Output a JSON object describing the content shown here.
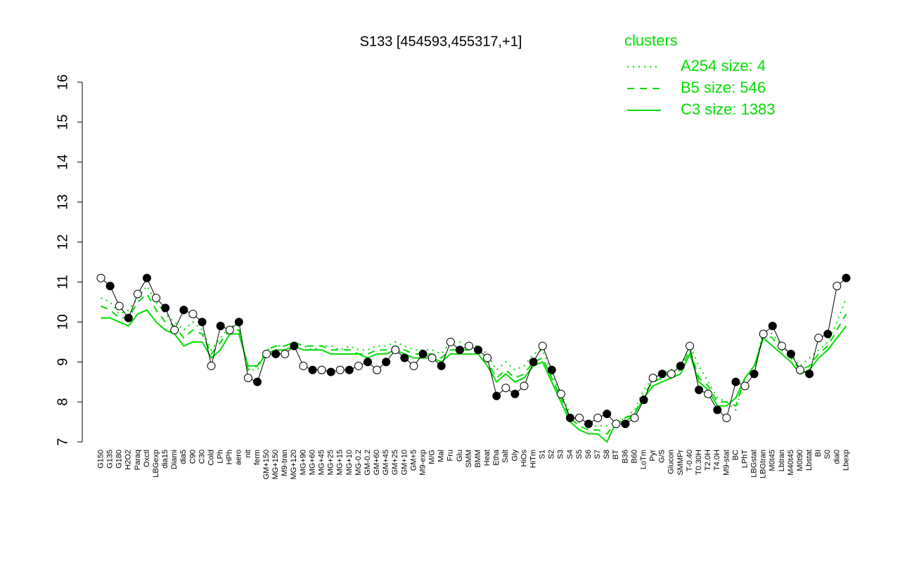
{
  "chart_data": {
    "type": "line",
    "title": "S133 [454593,455317,+1]",
    "categories": [
      "G150",
      "G135",
      "G180",
      "H2O2",
      "Paraq",
      "Oxctl",
      "LBGexp",
      "dia15",
      "Diami",
      "dia5",
      "C90",
      "C30",
      "Cold",
      "LPh",
      "HPh",
      "aero",
      "nit",
      "ferm",
      "GM+150",
      "MG+150",
      "M9-tran",
      "MG+120",
      "MG+90",
      "MG+60",
      "MG+45",
      "MG+25",
      "MG+15",
      "MG+10",
      "MG-0.2",
      "GM-0.2",
      "GM+60",
      "GM+45",
      "GM+25",
      "GM+10",
      "GM+5",
      "M9-exp",
      "M/G",
      "Mal",
      "Fru",
      "Glu",
      "SMM",
      "BMM",
      "Heat",
      "Etha",
      "Salt",
      "Gly",
      "HiOs",
      "HiTm",
      "S1",
      "S2",
      "S3",
      "S4",
      "S5",
      "S6",
      "S7",
      "S8",
      "BT",
      "B36",
      "B60",
      "LoTm",
      "Pyr",
      "G/S",
      "Glucon",
      "SMMPr",
      "T-0.40",
      "T0.30H",
      "T2.0H",
      "T4.0H",
      "M9-stat",
      "BC",
      "LPhT",
      "LBGstat",
      "LBGtran",
      "M0t45",
      "Lbtran",
      "M40t45",
      "M0t90",
      "Lbstat",
      "BI",
      "S0",
      "dia0",
      "Lbexp"
    ],
    "values": [
      11.1,
      10.9,
      10.4,
      10.1,
      10.7,
      11.1,
      10.6,
      10.35,
      9.8,
      10.3,
      10.2,
      10.0,
      8.9,
      9.9,
      9.8,
      10.0,
      8.6,
      8.5,
      9.2,
      9.2,
      9.2,
      9.4,
      8.9,
      8.8,
      8.8,
      8.75,
      8.8,
      8.8,
      8.9,
      9.0,
      8.8,
      9.0,
      9.3,
      9.1,
      8.9,
      9.2,
      9.1,
      8.9,
      9.5,
      9.3,
      9.4,
      9.3,
      9.1,
      8.15,
      8.35,
      8.2,
      8.4,
      9.0,
      9.4,
      8.8,
      8.2,
      7.6,
      7.6,
      7.45,
      7.6,
      7.7,
      7.45,
      7.45,
      7.6,
      8.05,
      8.6,
      8.7,
      8.7,
      8.9,
      9.4,
      8.3,
      8.2,
      7.8,
      7.6,
      8.5,
      8.4,
      8.7,
      9.7,
      9.9,
      9.4,
      9.2,
      8.8,
      8.7,
      9.6,
      9.7,
      10.9,
      11.1
    ],
    "color": "#000000",
    "legend_title": "clusters",
    "legend_color": "#00dd00",
    "series": [
      {
        "name": "A254 size: 4",
        "color": "#00dd00",
        "dash": "dotted",
        "values": [
          10.6,
          10.5,
          10.2,
          10.3,
          10.6,
          10.9,
          10.5,
          10.2,
          10.0,
          9.8,
          10.0,
          9.8,
          9.3,
          9.6,
          9.9,
          9.9,
          8.8,
          8.8,
          9.3,
          9.4,
          9.4,
          9.5,
          9.4,
          9.3,
          9.4,
          9.4,
          9.3,
          9.4,
          9.3,
          9.3,
          9.4,
          9.4,
          9.5,
          9.4,
          9.3,
          9.3,
          9.3,
          9.2,
          9.5,
          9.5,
          9.4,
          9.4,
          9.2,
          8.8,
          9.0,
          8.8,
          8.9,
          9.2,
          9.3,
          8.7,
          8.2,
          7.7,
          7.5,
          7.4,
          7.4,
          7.4,
          7.5,
          7.6,
          7.8,
          8.3,
          8.6,
          8.7,
          8.8,
          8.9,
          9.4,
          8.9,
          8.5,
          8.1,
          8.0,
          7.8,
          8.6,
          8.8,
          9.8,
          9.7,
          9.4,
          9.2,
          8.9,
          9.1,
          9.3,
          9.5,
          10.0,
          10.6
        ]
      },
      {
        "name": "B5 size: 546",
        "color": "#00dd00",
        "dash": "dashed",
        "values": [
          10.4,
          10.3,
          10.1,
          10.1,
          10.5,
          10.7,
          10.3,
          10.0,
          9.9,
          9.6,
          9.8,
          9.7,
          9.2,
          9.5,
          9.8,
          9.8,
          8.8,
          8.9,
          9.3,
          9.4,
          9.4,
          9.5,
          9.4,
          9.4,
          9.4,
          9.3,
          9.3,
          9.3,
          9.2,
          9.2,
          9.3,
          9.3,
          9.4,
          9.3,
          9.2,
          9.2,
          9.2,
          9.1,
          9.3,
          9.3,
          9.3,
          9.3,
          9.0,
          8.6,
          8.8,
          8.6,
          8.7,
          9.0,
          9.1,
          8.6,
          8.1,
          7.6,
          7.4,
          7.3,
          7.3,
          7.2,
          7.5,
          7.6,
          7.7,
          8.2,
          8.5,
          8.6,
          8.7,
          8.8,
          9.3,
          8.6,
          8.4,
          8.0,
          8.0,
          7.9,
          8.6,
          8.8,
          9.7,
          9.6,
          9.3,
          9.1,
          8.8,
          8.9,
          9.2,
          9.4,
          9.8,
          10.2
        ]
      },
      {
        "name": "C3 size: 1383",
        "color": "#00dd00",
        "dash": "solid",
        "values": [
          10.1,
          10.1,
          10.0,
          9.9,
          10.2,
          10.3,
          10.0,
          9.8,
          9.7,
          9.4,
          9.5,
          9.5,
          9.1,
          9.3,
          9.7,
          9.7,
          8.9,
          8.9,
          9.2,
          9.3,
          9.3,
          9.4,
          9.3,
          9.3,
          9.3,
          9.2,
          9.2,
          9.2,
          9.2,
          9.1,
          9.2,
          9.2,
          9.3,
          9.2,
          9.1,
          9.1,
          9.1,
          9.0,
          9.2,
          9.2,
          9.2,
          9.2,
          8.9,
          8.5,
          8.7,
          8.5,
          8.6,
          8.9,
          9.0,
          8.5,
          8.0,
          7.5,
          7.3,
          7.2,
          7.2,
          7.0,
          7.5,
          7.5,
          7.7,
          8.1,
          8.4,
          8.5,
          8.6,
          8.7,
          9.2,
          8.5,
          8.3,
          7.9,
          7.9,
          8.1,
          8.6,
          8.9,
          9.6,
          9.4,
          9.2,
          9.0,
          8.7,
          8.8,
          9.1,
          9.3,
          9.6,
          9.9
        ]
      }
    ],
    "ylim": [
      7,
      16
    ],
    "yticks": [
      7,
      8,
      9,
      10,
      11,
      12,
      13,
      14,
      15,
      16
    ]
  }
}
